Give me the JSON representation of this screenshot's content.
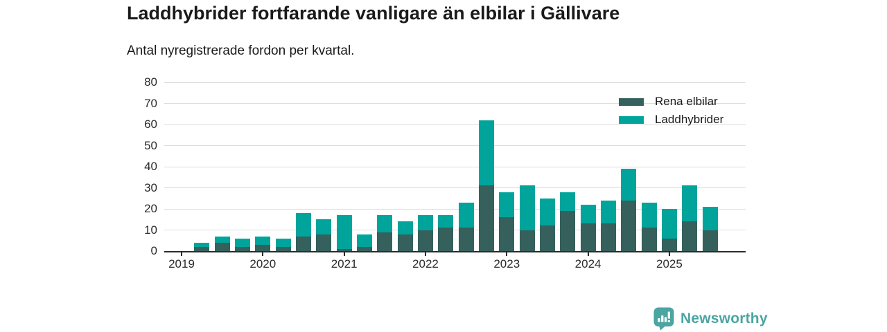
{
  "header": {
    "title": "Laddhybrider fortfarande vanligare än elbilar i Gällivare",
    "subtitle": "Antal nyregistrerade fordon per kvartal."
  },
  "chart_data": {
    "type": "bar",
    "stacked": true,
    "x": [
      "2019-Q1",
      "2019-Q2",
      "2019-Q3",
      "2019-Q4",
      "2020-Q1",
      "2020-Q2",
      "2020-Q3",
      "2020-Q4",
      "2021-Q1",
      "2021-Q2",
      "2021-Q3",
      "2021-Q4",
      "2022-Q1",
      "2022-Q2",
      "2022-Q3",
      "2022-Q4",
      "2023-Q1",
      "2023-Q2",
      "2023-Q3",
      "2023-Q4",
      "2024-Q1",
      "2024-Q2",
      "2024-Q3",
      "2024-Q4",
      "2025-Q1",
      "2025-Q2",
      "2025-Q3"
    ],
    "series": [
      {
        "name": "Rena elbilar",
        "color": "#35605C",
        "values": [
          0,
          2,
          4,
          2,
          3,
          2,
          7,
          8,
          1,
          2,
          9,
          8,
          10,
          11,
          11,
          31,
          16,
          10,
          12,
          19,
          13,
          13,
          24,
          11,
          6,
          14,
          10
        ]
      },
      {
        "name": "Laddhybrider",
        "color": "#00A49B",
        "values": [
          0,
          2,
          3,
          4,
          4,
          4,
          11,
          7,
          16,
          6,
          8,
          6,
          7,
          6,
          12,
          31,
          12,
          21,
          13,
          9,
          9,
          11,
          15,
          12,
          14,
          17,
          11
        ]
      }
    ],
    "title": "Laddhybrider fortfarande vanligare än elbilar i Gällivare",
    "xlabel": "",
    "ylabel": "",
    "ylim": [
      0,
      80
    ],
    "ytick_step": 10,
    "yticks": [
      0,
      10,
      20,
      30,
      40,
      50,
      60,
      70,
      80
    ],
    "xtick_years": [
      "2019",
      "2020",
      "2021",
      "2022",
      "2023",
      "2024",
      "2025"
    ],
    "grid": true,
    "legend_position": "top-right"
  },
  "branding": {
    "name": "Newsworthy",
    "color": "#4BA5A2",
    "icon": "speech-bubble-bar-chart-icon"
  },
  "colors": {
    "axis": "#2B2B2B",
    "grid": "#DCDCDC",
    "text": "#1A1A1A"
  }
}
